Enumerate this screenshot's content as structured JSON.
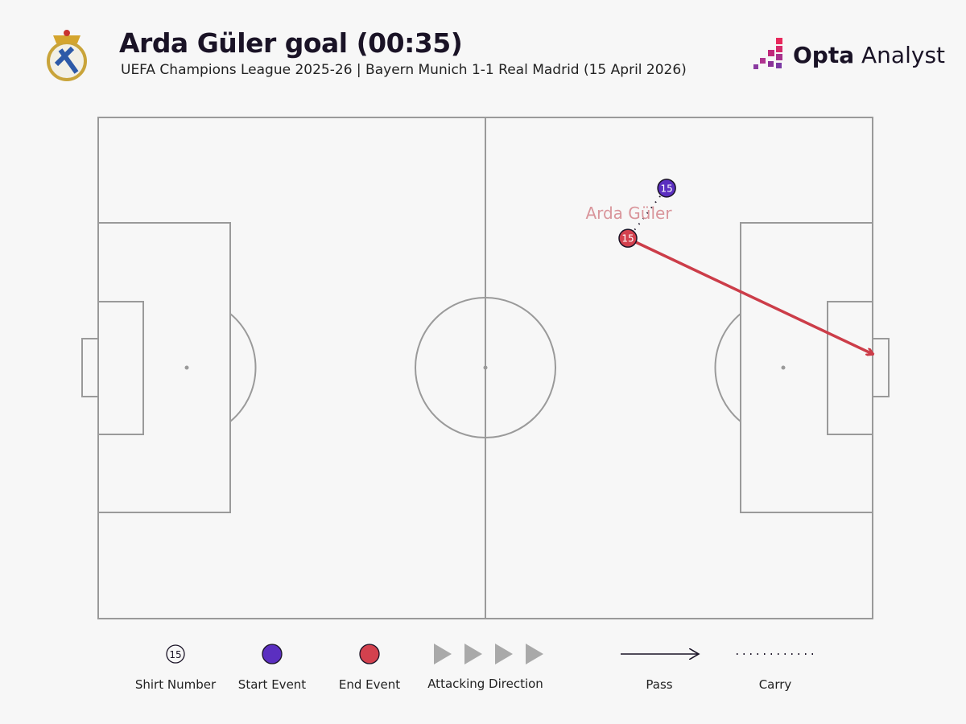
{
  "header": {
    "title": "Arda Güler goal (00:35)",
    "subtitle": "UEFA Champions League 2025-26 | Bayern Munich 1-1 Real Madrid (15 April 2026)",
    "brand_bold": "Opta",
    "brand_light": "Analyst",
    "crest": "real-madrid-crest"
  },
  "colors": {
    "start": "#5b2fc0",
    "end": "#d3414e",
    "pass": "#cc3d49",
    "pitch_line": "#9a9a9a",
    "label": "#d9959b"
  },
  "events": {
    "player": "Arda Güler",
    "shirt": "15",
    "start": {
      "x": 73.4,
      "y": 14.1
    },
    "end": {
      "x": 68.4,
      "y": 24.1
    },
    "shot_end": {
      "x": 100,
      "y": 47.2
    }
  },
  "legend": {
    "shirt_number": "Shirt Number",
    "shirt_example": "15",
    "start_event": "Start Event",
    "end_event": "End Event",
    "attacking_direction": "Attacking Direction",
    "pass": "Pass",
    "carry": "Carry"
  }
}
